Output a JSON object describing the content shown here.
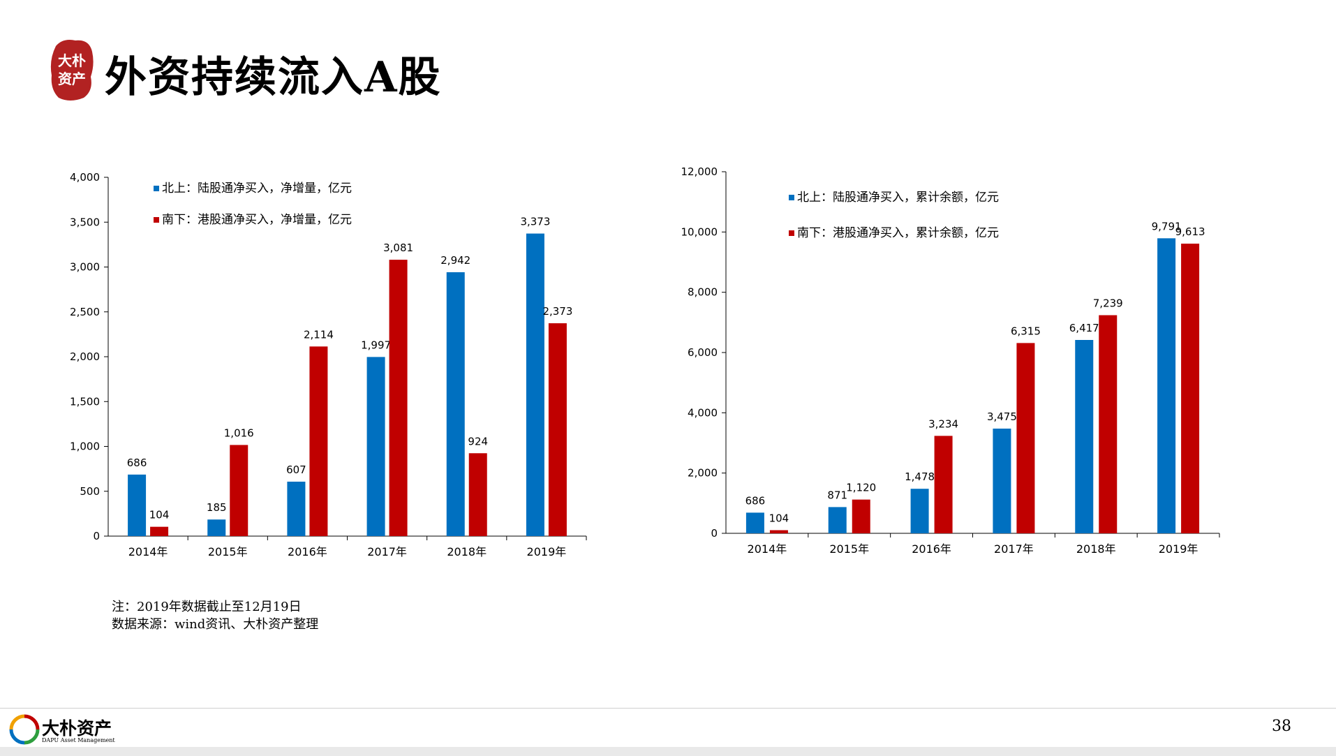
{
  "header": {
    "title": "外资持续流入A股",
    "logo_text": [
      "大朴",
      "资产"
    ]
  },
  "notes": {
    "line1": "注：2019年数据截止至12月19日",
    "line2": "数据来源：wind资讯、大朴资产整理"
  },
  "footer": {
    "brand": "大朴资产",
    "sub": "DAPU Asset Management",
    "page_number": "38"
  },
  "colors": {
    "north": "#0070C0",
    "south": "#C00000"
  },
  "chart_data": [
    {
      "type": "bar",
      "categories": [
        "2014年",
        "2015年",
        "2016年",
        "2017年",
        "2018年",
        "2019年"
      ],
      "series": [
        {
          "name": "北上：陆股通净买入，净增量，亿元",
          "values": [
            686,
            185,
            607,
            1997,
            2942,
            3373
          ],
          "labels": [
            "686",
            "185",
            "607",
            "1,997",
            "2,942",
            "3,373"
          ],
          "color": "#0070C0"
        },
        {
          "name": "南下：港股通净买入，净增量，亿元",
          "values": [
            104,
            1016,
            2114,
            3081,
            924,
            2373
          ],
          "labels": [
            "104",
            "1,016",
            "2,114",
            "3,081",
            "924",
            "2,373"
          ],
          "color": "#C00000"
        }
      ],
      "ylim": [
        0,
        4000
      ],
      "yticks": [
        "0",
        "500",
        "1,000",
        "1,500",
        "2,000",
        "2,500",
        "3,000",
        "3,500",
        "4,000"
      ],
      "legend": "top-left",
      "grid": false
    },
    {
      "type": "bar",
      "categories": [
        "2014年",
        "2015年",
        "2016年",
        "2017年",
        "2018年",
        "2019年"
      ],
      "series": [
        {
          "name": "北上：陆股通净买入，累计余额，亿元",
          "values": [
            686,
            871,
            1478,
            3475,
            6417,
            9791
          ],
          "labels": [
            "686",
            "871",
            "1,478",
            "3,475",
            "6,417",
            "9,791"
          ],
          "color": "#0070C0"
        },
        {
          "name": "南下：港股通净买入，累计余额，亿元",
          "values": [
            104,
            1120,
            3234,
            6315,
            7239,
            9613
          ],
          "labels": [
            "104",
            "1,120",
            "3,234",
            "6,315",
            "7,239",
            "9,613"
          ],
          "color": "#C00000"
        }
      ],
      "ylim": [
        0,
        12000
      ],
      "yticks": [
        "0",
        "2,000",
        "4,000",
        "6,000",
        "8,000",
        "10,000",
        "12,000"
      ],
      "legend": "top-left",
      "grid": false
    }
  ]
}
